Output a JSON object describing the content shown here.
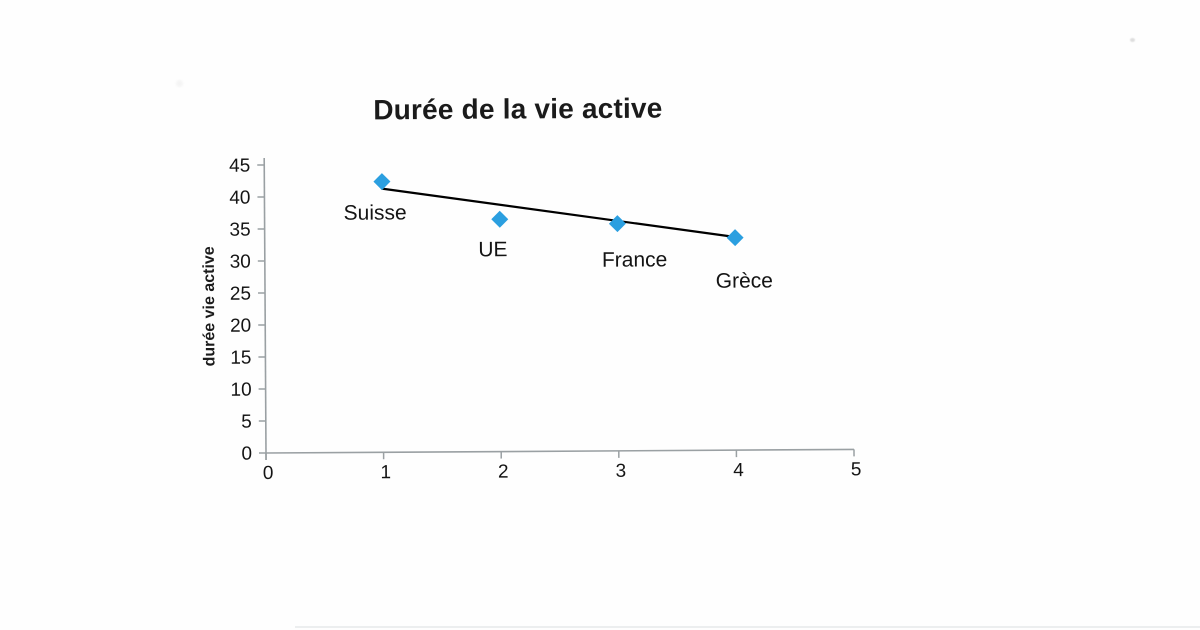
{
  "chart_data": {
    "type": "scatter",
    "title": "Durée de la vie active",
    "xlabel": "",
    "ylabel": "durée vie active",
    "xlim": [
      0,
      5
    ],
    "ylim": [
      0,
      45
    ],
    "x_ticks": [
      0,
      1,
      2,
      3,
      4,
      5
    ],
    "y_ticks": [
      0,
      5,
      10,
      15,
      20,
      25,
      30,
      35,
      40,
      45
    ],
    "grid": false,
    "legend": "none",
    "axis_color": "#9aa0a3",
    "text_color": "#141414",
    "series": [
      {
        "name": "durée vie active",
        "marker": "diamond",
        "marker_color": "#2b9fe0",
        "points": [
          {
            "x": 1,
            "y": 42.3,
            "label": "Suisse",
            "label_dx": -7,
            "label_dy": 31
          },
          {
            "x": 2,
            "y": 36.3,
            "label": "UE",
            "label_dx": -7,
            "label_dy": 30
          },
          {
            "x": 3,
            "y": 35.5,
            "label": "France",
            "label_dx": 17,
            "label_dy": 36
          },
          {
            "x": 4,
            "y": 33.2,
            "label": "Grèce",
            "label_dx": 9,
            "label_dy": 43
          }
        ]
      }
    ],
    "trendline": {
      "color": "#000000",
      "x1": 1,
      "y1": 41.2,
      "x2": 4,
      "y2": 33.3
    }
  }
}
